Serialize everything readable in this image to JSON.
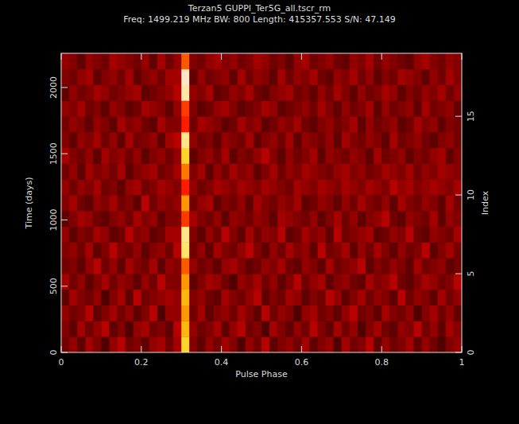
{
  "chart_data": {
    "type": "heatmap",
    "title": "Terzan5 GUPPI_Ter5G_all.tscr_rm",
    "subtitle": "Freq: 1499.219 MHz BW: 800 Length: 415357.553 S/N: 47.149",
    "x_label": "Pulse Phase",
    "y_label": "Time (days)",
    "y2_label": "Index",
    "xlim": [
      0,
      1
    ],
    "xticks": [
      0,
      0.2,
      0.4,
      0.6,
      0.8,
      1
    ],
    "ylim": [
      0,
      2258
    ],
    "yticks": [
      0,
      500,
      1000,
      1500,
      2000
    ],
    "y2lim": [
      0,
      19
    ],
    "y2ticks": [
      0,
      5,
      10,
      15
    ],
    "cells": [
      [
        4,
        6,
        3,
        7,
        5,
        2,
        6,
        8,
        4,
        5,
        3,
        6,
        7,
        4,
        7,
        26,
        5,
        3,
        6,
        4,
        7,
        5,
        2,
        6,
        4,
        8,
        3,
        5,
        6,
        4,
        7,
        3,
        5,
        6,
        2,
        7,
        4,
        5,
        8,
        3,
        6,
        4,
        5,
        7,
        3,
        6,
        4,
        2,
        5,
        6
      ],
      [
        5,
        3,
        7,
        4,
        6,
        8,
        3,
        5,
        2,
        6,
        7,
        4,
        5,
        3,
        8,
        24,
        6,
        4,
        5,
        7,
        3,
        6,
        8,
        4,
        5,
        2,
        7,
        5,
        3,
        6,
        4,
        8,
        5,
        3,
        7,
        4,
        6,
        2,
        5,
        7,
        4,
        3,
        6,
        5,
        8,
        4,
        6,
        3,
        7,
        5
      ],
      [
        6,
        4,
        5,
        8,
        3,
        5,
        7,
        4,
        6,
        3,
        5,
        8,
        2,
        6,
        6,
        22,
        4,
        7,
        3,
        5,
        6,
        4,
        7,
        5,
        3,
        8,
        4,
        6,
        5,
        2,
        6,
        7,
        4,
        5,
        3,
        6,
        8,
        4,
        5,
        3,
        7,
        5,
        4,
        6,
        2,
        5,
        7,
        4,
        6,
        3
      ],
      [
        3,
        7,
        5,
        4,
        6,
        2,
        5,
        7,
        3,
        8,
        4,
        5,
        6,
        7,
        6,
        24,
        5,
        6,
        4,
        3,
        7,
        5,
        4,
        6,
        8,
        3,
        5,
        4,
        7,
        6,
        3,
        5,
        4,
        8,
        6,
        3,
        5,
        7,
        4,
        6,
        5,
        3,
        8,
        4,
        6,
        5,
        3,
        7,
        4,
        6
      ],
      [
        7,
        4,
        6,
        3,
        5,
        7,
        4,
        6,
        5,
        3,
        6,
        4,
        8,
        5,
        5,
        22,
        3,
        5,
        7,
        6,
        4,
        2,
        6,
        5,
        7,
        4,
        6,
        3,
        5,
        8,
        4,
        6,
        7,
        3,
        5,
        6,
        4,
        3,
        7,
        5,
        6,
        8,
        4,
        3,
        5,
        7,
        6,
        4,
        5,
        8
      ],
      [
        4,
        5,
        3,
        6,
        8,
        4,
        6,
        3,
        7,
        5,
        4,
        7,
        3,
        6,
        5,
        18,
        6,
        4,
        5,
        3,
        6,
        7,
        5,
        3,
        4,
        6,
        5,
        7,
        4,
        3,
        6,
        5,
        3,
        7,
        4,
        5,
        6,
        8,
        3,
        5,
        4,
        6,
        5,
        3,
        7,
        4,
        5,
        6,
        3,
        4
      ],
      [
        5,
        6,
        4,
        7,
        3,
        5,
        8,
        5,
        4,
        6,
        3,
        5,
        6,
        4,
        8,
        30,
        4,
        6,
        3,
        7,
        5,
        4,
        6,
        8,
        5,
        3,
        6,
        4,
        7,
        5,
        6,
        3,
        8,
        4,
        5,
        7,
        3,
        6,
        4,
        7,
        5,
        3,
        6,
        4,
        5,
        8,
        3,
        5,
        7,
        4
      ],
      [
        6,
        3,
        5,
        4,
        7,
        6,
        3,
        4,
        8,
        5,
        6,
        3,
        4,
        7,
        7,
        32,
        5,
        3,
        6,
        4,
        8,
        5,
        3,
        7,
        4,
        6,
        5,
        8,
        3,
        4,
        7,
        5,
        6,
        3,
        8,
        4,
        5,
        6,
        7,
        3,
        4,
        6,
        5,
        8,
        4,
        3,
        6,
        5,
        4,
        7
      ],
      [
        3,
        5,
        7,
        6,
        4,
        3,
        5,
        6,
        4,
        7,
        5,
        6,
        3,
        5,
        5,
        16,
        7,
        5,
        4,
        6,
        3,
        6,
        5,
        4,
        6,
        5,
        3,
        7,
        6,
        5,
        4,
        6,
        3,
        5,
        7,
        4,
        6,
        3,
        5,
        6,
        8,
        4,
        3,
        6,
        5,
        4,
        7,
        3,
        6,
        5
      ],
      [
        5,
        7,
        4,
        3,
        6,
        5,
        7,
        4,
        5,
        3,
        8,
        4,
        6,
        5,
        6,
        22,
        4,
        6,
        7,
        3,
        5,
        4,
        6,
        3,
        7,
        5,
        4,
        6,
        5,
        7,
        3,
        4,
        6,
        5,
        3,
        6,
        4,
        7,
        5,
        4,
        6,
        3,
        7,
        5,
        4,
        6,
        5,
        3,
        7,
        4
      ],
      [
        6,
        4,
        6,
        5,
        7,
        4,
        5,
        3,
        6,
        7,
        4,
        5,
        7,
        6,
        5,
        14,
        6,
        4,
        5,
        7,
        6,
        5,
        7,
        6,
        5,
        7,
        6,
        5,
        4,
        7,
        6,
        5,
        7,
        6,
        5,
        7,
        6,
        5,
        7,
        6,
        5,
        8,
        6,
        7,
        5,
        6,
        7,
        6,
        5,
        7
      ],
      [
        4,
        6,
        3,
        7,
        5,
        6,
        4,
        7,
        3,
        5,
        6,
        7,
        4,
        5,
        7,
        20,
        5,
        7,
        3,
        6,
        4,
        7,
        5,
        6,
        3,
        5,
        7,
        4,
        6,
        5,
        7,
        6,
        5,
        4,
        6,
        7,
        5,
        6,
        4,
        5,
        7,
        6,
        5,
        7,
        4,
        6,
        5,
        7,
        6,
        5
      ],
      [
        7,
        5,
        4,
        6,
        3,
        7,
        5,
        6,
        4,
        6,
        3,
        5,
        6,
        4,
        6,
        26,
        3,
        5,
        6,
        4,
        7,
        3,
        5,
        4,
        6,
        8,
        5,
        3,
        6,
        4,
        5,
        7,
        3,
        6,
        5,
        4,
        6,
        5,
        3,
        7,
        4,
        5,
        6,
        3,
        5,
        4,
        6,
        7,
        3,
        5
      ],
      [
        5,
        3,
        6,
        5,
        7,
        4,
        6,
        3,
        7,
        4,
        5,
        6,
        3,
        7,
        8,
        32,
        6,
        4,
        5,
        3,
        6,
        5,
        4,
        7,
        3,
        5,
        6,
        4,
        7,
        3,
        6,
        5,
        4,
        6,
        3,
        7,
        5,
        4,
        6,
        5,
        3,
        7,
        4,
        5,
        6,
        4,
        3,
        5,
        6,
        4
      ],
      [
        4,
        6,
        5,
        3,
        6,
        5,
        3,
        7,
        5,
        6,
        4,
        3,
        7,
        5,
        5,
        14,
        4,
        7,
        6,
        5,
        3,
        4,
        7,
        5,
        6,
        3,
        4,
        6,
        5,
        7,
        4,
        3,
        5,
        6,
        4,
        5,
        7,
        3,
        6,
        4,
        5,
        6,
        3,
        4,
        7,
        5,
        6,
        3,
        5,
        4
      ],
      [
        6,
        5,
        7,
        4,
        5,
        3,
        6,
        5,
        3,
        4,
        7,
        6,
        5,
        3,
        6,
        16,
        5,
        3,
        4,
        6,
        7,
        5,
        3,
        4,
        5,
        7,
        6,
        3,
        4,
        5,
        6,
        4,
        7,
        5,
        3,
        6,
        4,
        5,
        7,
        3,
        6,
        4,
        5,
        6,
        3,
        7,
        4,
        5,
        6,
        3
      ],
      [
        3,
        6,
        4,
        5,
        7,
        6,
        4,
        5,
        6,
        7,
        3,
        4,
        5,
        6,
        8,
        34,
        6,
        5,
        7,
        3,
        4,
        6,
        5,
        7,
        4,
        3,
        5,
        6,
        7,
        4,
        5,
        3,
        6,
        4,
        7,
        5,
        3,
        6,
        4,
        5,
        7,
        6,
        3,
        5,
        4,
        6,
        5,
        7,
        4,
        6
      ],
      [
        5,
        4,
        6,
        7,
        3,
        5,
        6,
        4,
        7,
        3,
        5,
        6,
        4,
        7,
        7,
        36,
        3,
        6,
        4,
        5,
        6,
        3,
        7,
        4,
        6,
        5,
        3,
        7,
        4,
        6,
        5,
        7,
        4,
        3,
        6,
        5,
        7,
        4,
        6,
        3,
        5,
        4,
        7,
        6,
        5,
        3,
        6,
        4,
        7,
        5
      ],
      [
        6,
        5,
        3,
        6,
        5,
        4,
        7,
        6,
        5,
        4,
        6,
        3,
        7,
        4,
        6,
        18,
        5,
        4,
        6,
        7,
        5,
        6,
        4,
        5,
        7,
        6,
        4,
        5,
        3,
        6,
        7,
        4,
        5,
        6,
        4,
        3,
        6,
        5,
        7,
        4,
        6,
        5,
        4,
        3,
        6,
        7,
        5,
        4,
        6,
        5
      ]
    ]
  }
}
